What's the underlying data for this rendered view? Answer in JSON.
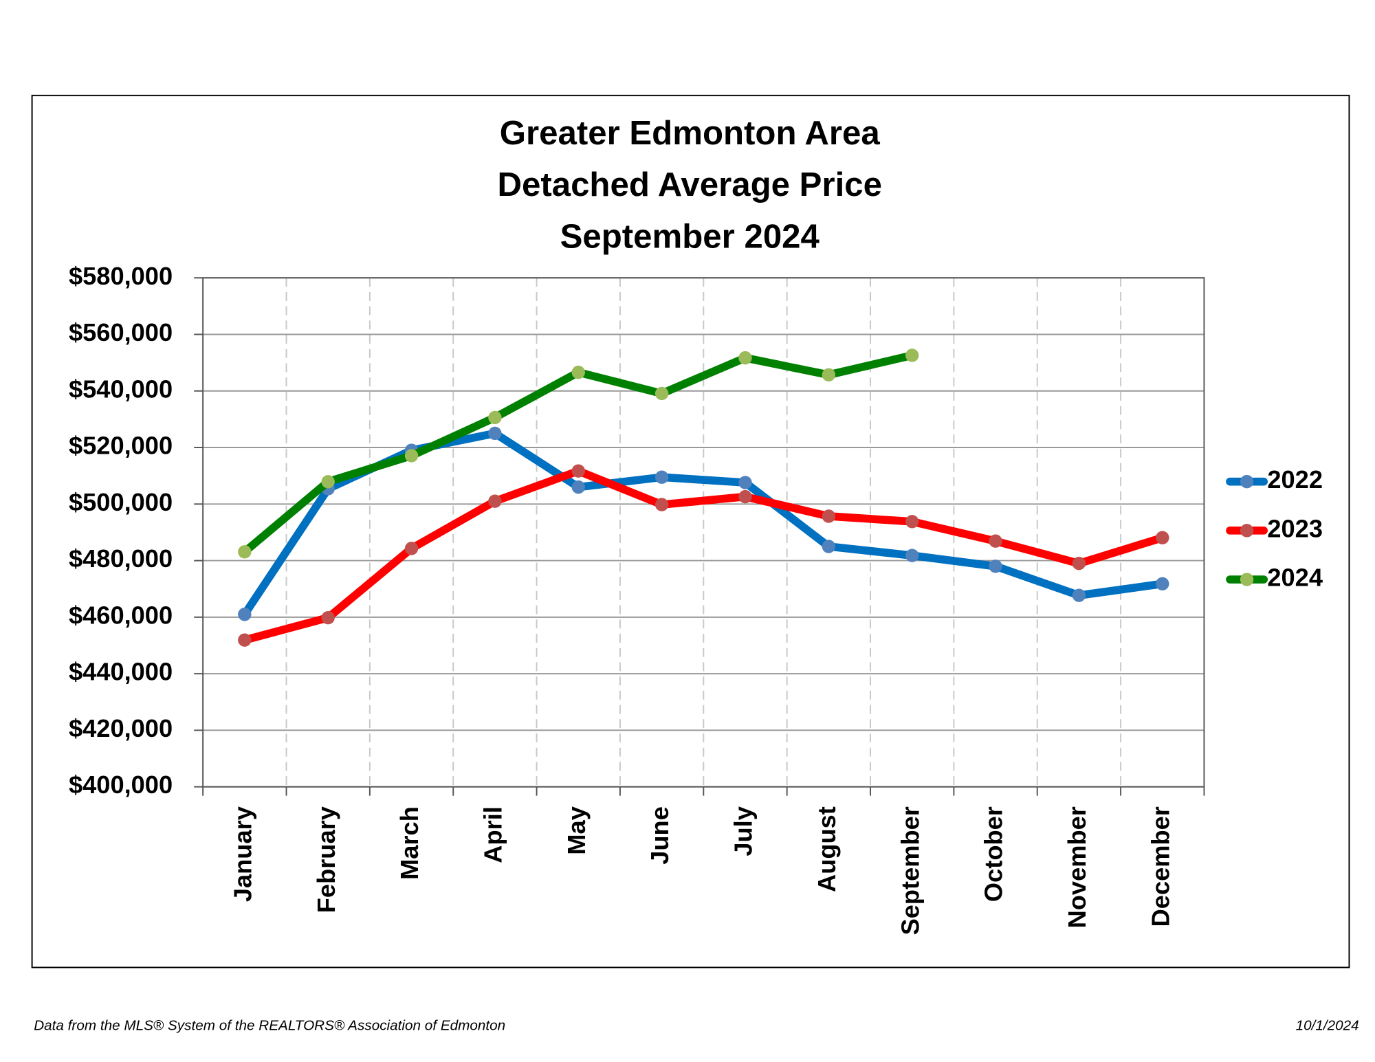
{
  "chart_data": {
    "type": "line",
    "title": [
      "Greater Edmonton Area",
      "Detached Average Price",
      "September 2024"
    ],
    "categories": [
      "January",
      "February",
      "March",
      "April",
      "May",
      "June",
      "July",
      "August",
      "September",
      "October",
      "November",
      "December"
    ],
    "series": [
      {
        "name": "2022",
        "color": "#0070c0",
        "marker_color": "#4f81bd",
        "values": [
          461000,
          505400,
          519000,
          525000,
          506000,
          509500,
          507600,
          485000,
          481800,
          478000,
          467700,
          471800
        ]
      },
      {
        "name": "2023",
        "color": "#ff0000",
        "marker_color": "#c0504d",
        "values": [
          451900,
          459800,
          484300,
          501000,
          511700,
          499800,
          502600,
          495700,
          493800,
          486900,
          479000,
          488100
        ]
      },
      {
        "name": "2024",
        "color": "#008000",
        "marker_color": "#9bbb59",
        "values": [
          483100,
          507900,
          517100,
          530600,
          546600,
          539100,
          551700,
          545700,
          552600,
          null,
          null,
          null
        ]
      }
    ],
    "ylim": [
      400000,
      580000
    ],
    "yticks": [
      {
        "value": 400000,
        "label": "$400,000"
      },
      {
        "value": 420000,
        "label": "$420,000"
      },
      {
        "value": 440000,
        "label": "$440,000"
      },
      {
        "value": 460000,
        "label": "$460,000"
      },
      {
        "value": 480000,
        "label": "$480,000"
      },
      {
        "value": 500000,
        "label": "$500,000"
      },
      {
        "value": 520000,
        "label": "$520,000"
      },
      {
        "value": 540000,
        "label": "$540,000"
      },
      {
        "value": 560000,
        "label": "$560,000"
      },
      {
        "value": 580000,
        "label": "$580,000"
      }
    ],
    "grid": true,
    "legend": "right",
    "source": "Data from the MLS® System of the REALTORS® Association of Edmonton",
    "date": "10/1/2024"
  }
}
